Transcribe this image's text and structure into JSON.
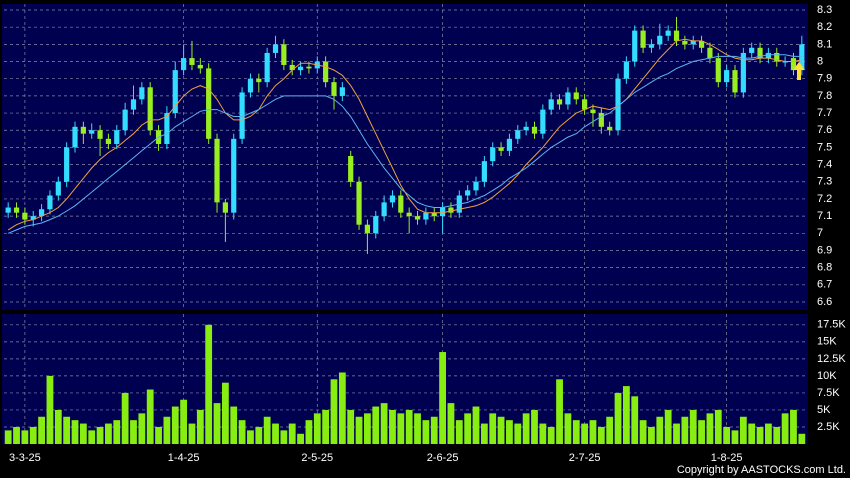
{
  "chart_data": [
    {
      "type": "candlestick",
      "up_color": "#33ddff",
      "down_color": "#99ee22",
      "background": "#000050",
      "ylim": [
        6.6,
        8.3
      ],
      "yticks": [
        6.6,
        6.7,
        6.8,
        6.9,
        7,
        7.1,
        7.2,
        7.3,
        7.4,
        7.5,
        7.6,
        7.7,
        7.8,
        7.9,
        8,
        8.1,
        8.2,
        8.3
      ],
      "grid": true,
      "open": [
        7.12,
        7.15,
        7.12,
        7.08,
        7.1,
        7.14,
        7.22,
        7.3,
        7.5,
        7.62,
        7.58,
        7.6,
        7.55,
        7.52,
        7.6,
        7.72,
        7.78,
        7.85,
        7.6,
        7.52,
        7.7,
        7.95,
        8.02,
        7.98,
        7.96,
        7.55,
        7.18,
        7.12,
        7.55,
        7.82,
        7.9,
        7.88,
        8.05,
        8.1,
        7.98,
        7.95,
        7.97,
        7.96,
        8.0,
        7.88,
        7.8,
        7.45,
        7.3,
        7.05,
        7.0,
        7.1,
        7.18,
        7.22,
        7.12,
        7.1,
        7.08,
        7.12,
        7.1,
        7.15,
        7.12,
        7.22,
        7.25,
        7.3,
        7.42,
        7.5,
        7.48,
        7.55,
        7.6,
        7.62,
        7.58,
        7.72,
        7.78,
        7.75,
        7.82,
        7.78,
        7.72,
        7.7,
        7.62,
        7.6,
        7.9,
        8.0,
        8.18,
        8.08,
        8.1,
        8.15,
        8.18,
        8.12,
        8.1,
        8.12,
        8.08,
        8.02,
        7.88,
        7.95,
        7.82,
        8.05,
        8.08,
        8.02,
        8.05,
        8.0,
        8.02,
        7.95
      ],
      "high": [
        7.18,
        7.18,
        7.15,
        7.13,
        7.17,
        7.25,
        7.33,
        7.53,
        7.65,
        7.65,
        7.64,
        7.63,
        7.58,
        7.63,
        7.76,
        7.86,
        7.88,
        7.88,
        7.63,
        7.74,
        8.0,
        8.1,
        8.12,
        8.02,
        7.99,
        7.58,
        7.2,
        7.58,
        7.85,
        7.93,
        7.93,
        8.08,
        8.15,
        8.13,
        8.01,
        8.0,
        8.0,
        8.03,
        8.03,
        7.91,
        7.88,
        7.48,
        7.33,
        7.08,
        7.13,
        7.22,
        7.25,
        7.25,
        7.15,
        7.13,
        7.15,
        7.15,
        7.18,
        7.18,
        7.25,
        7.28,
        7.33,
        7.45,
        7.53,
        7.53,
        7.58,
        7.63,
        7.65,
        7.65,
        7.75,
        7.82,
        7.81,
        7.85,
        7.85,
        7.81,
        7.75,
        7.73,
        7.65,
        7.93,
        8.03,
        8.21,
        8.21,
        8.13,
        8.22,
        8.21,
        8.26,
        8.15,
        8.15,
        8.15,
        8.11,
        8.05,
        7.98,
        7.98,
        8.08,
        8.11,
        8.11,
        8.08,
        8.08,
        8.03,
        8.05,
        8.15
      ],
      "low": [
        7.09,
        7.09,
        7.05,
        7.04,
        7.07,
        7.11,
        7.19,
        7.27,
        7.47,
        7.52,
        7.55,
        7.45,
        7.49,
        7.49,
        7.57,
        7.69,
        7.75,
        7.57,
        7.48,
        7.49,
        7.67,
        7.92,
        7.95,
        7.93,
        7.52,
        7.12,
        6.95,
        7.08,
        7.52,
        7.79,
        7.82,
        7.85,
        8.02,
        7.95,
        7.92,
        7.92,
        7.93,
        7.93,
        7.85,
        7.72,
        7.77,
        7.27,
        7.02,
        6.88,
        6.97,
        7.07,
        7.15,
        7.09,
        7.0,
        7.05,
        7.05,
        7.07,
        7.0,
        7.09,
        7.09,
        7.19,
        7.22,
        7.27,
        7.39,
        7.45,
        7.45,
        7.52,
        7.57,
        7.55,
        7.55,
        7.69,
        7.72,
        7.72,
        7.75,
        7.69,
        7.62,
        7.58,
        7.57,
        7.57,
        7.87,
        7.97,
        8.05,
        8.05,
        8.07,
        8.12,
        8.09,
        8.07,
        8.07,
        8.05,
        7.99,
        7.85,
        7.85,
        7.79,
        7.79,
        8.02,
        7.99,
        7.99,
        7.97,
        7.97,
        7.92,
        7.92
      ],
      "close": [
        7.15,
        7.12,
        7.08,
        7.1,
        7.14,
        7.22,
        7.3,
        7.5,
        7.62,
        7.58,
        7.6,
        7.55,
        7.52,
        7.6,
        7.72,
        7.78,
        7.85,
        7.6,
        7.52,
        7.7,
        7.95,
        8.02,
        7.98,
        7.96,
        7.55,
        7.18,
        7.12,
        7.55,
        7.82,
        7.9,
        7.88,
        8.05,
        8.1,
        7.98,
        7.95,
        7.97,
        7.96,
        8.0,
        7.88,
        7.8,
        7.85,
        7.3,
        7.05,
        7.0,
        7.1,
        7.18,
        7.22,
        7.12,
        7.1,
        7.08,
        7.12,
        7.1,
        7.15,
        7.12,
        7.22,
        7.25,
        7.3,
        7.42,
        7.5,
        7.48,
        7.55,
        7.6,
        7.62,
        7.58,
        7.72,
        7.78,
        7.75,
        7.82,
        7.78,
        7.72,
        7.7,
        7.62,
        7.6,
        7.9,
        8.0,
        8.18,
        8.08,
        8.1,
        8.15,
        8.18,
        8.12,
        8.1,
        8.12,
        8.08,
        8.02,
        7.88,
        7.95,
        7.82,
        8.05,
        8.08,
        8.02,
        8.05,
        8.0,
        8.0,
        7.95,
        8.1
      ],
      "series": [
        {
          "color": "#f0a040",
          "values": [
            7.02,
            7.05,
            7.07,
            7.08,
            7.1,
            7.12,
            7.15,
            7.2,
            7.26,
            7.32,
            7.38,
            7.43,
            7.47,
            7.5,
            7.54,
            7.58,
            7.63,
            7.66,
            7.66,
            7.68,
            7.74,
            7.8,
            7.84,
            7.86,
            7.84,
            7.78,
            7.7,
            7.66,
            7.66,
            7.68,
            7.72,
            7.8,
            7.86,
            7.9,
            7.95,
            7.99,
            7.99,
            7.98,
            7.97,
            7.95,
            7.92,
            7.86,
            7.78,
            7.68,
            7.58,
            7.48,
            7.38,
            7.28,
            7.2,
            7.14,
            7.12,
            7.12,
            7.12,
            7.13,
            7.14,
            7.15,
            7.16,
            7.18,
            7.21,
            7.25,
            7.29,
            7.34,
            7.4,
            7.45,
            7.5,
            7.56,
            7.62,
            7.66,
            7.7,
            7.72,
            7.74,
            7.73,
            7.72,
            7.74,
            7.78,
            7.84,
            7.9,
            7.96,
            8.02,
            8.07,
            8.12,
            8.13,
            8.12,
            8.12,
            8.1,
            8.07,
            8.04,
            8.02,
            8.01,
            8.01,
            8.02,
            8.02,
            8.01,
            8.0,
            8.0,
            8.01
          ]
        },
        {
          "color": "#5fb4f0",
          "values": [
            7.0,
            7.02,
            7.04,
            7.05,
            7.06,
            7.08,
            7.1,
            7.13,
            7.16,
            7.2,
            7.24,
            7.28,
            7.32,
            7.36,
            7.4,
            7.44,
            7.48,
            7.52,
            7.56,
            7.58,
            7.62,
            7.65,
            7.68,
            7.71,
            7.72,
            7.72,
            7.7,
            7.68,
            7.68,
            7.7,
            7.72,
            7.75,
            7.78,
            7.8,
            7.8,
            7.8,
            7.8,
            7.8,
            7.8,
            7.78,
            7.74,
            7.68,
            7.6,
            7.52,
            7.45,
            7.38,
            7.32,
            7.26,
            7.22,
            7.18,
            7.16,
            7.15,
            7.15,
            7.16,
            7.17,
            7.18,
            7.2,
            7.22,
            7.25,
            7.28,
            7.32,
            7.35,
            7.38,
            7.42,
            7.46,
            7.5,
            7.53,
            7.56,
            7.58,
            7.62,
            7.65,
            7.68,
            7.7,
            7.74,
            7.78,
            7.82,
            7.85,
            7.88,
            7.91,
            7.93,
            7.96,
            7.98,
            8.0,
            8.01,
            8.02,
            8.03,
            8.03,
            8.03,
            8.02,
            8.02,
            8.03,
            8.04,
            8.04,
            8.04,
            8.03,
            8.03
          ]
        }
      ]
    },
    {
      "type": "bar",
      "color": "#88ee11",
      "background": "#000050",
      "ylim": [
        0,
        18500
      ],
      "grid": true,
      "yticks": [
        {
          "value": 2500,
          "label": "2.5K"
        },
        {
          "value": 5000,
          "label": "5K"
        },
        {
          "value": 7500,
          "label": "7.5K"
        },
        {
          "value": 10000,
          "label": "10K"
        },
        {
          "value": 12500,
          "label": "12.5K"
        },
        {
          "value": 15000,
          "label": "15K"
        },
        {
          "value": 17500,
          "label": "17.5K"
        }
      ],
      "categories": [
        null,
        null,
        "3-3-25",
        null,
        null,
        null,
        null,
        null,
        null,
        null,
        null,
        null,
        null,
        null,
        null,
        null,
        null,
        null,
        null,
        null,
        null,
        "1-4-25",
        null,
        null,
        null,
        null,
        null,
        null,
        null,
        null,
        null,
        null,
        null,
        null,
        null,
        null,
        null,
        "2-5-25",
        null,
        null,
        null,
        null,
        null,
        null,
        null,
        null,
        null,
        null,
        null,
        null,
        null,
        null,
        "2-6-25",
        null,
        null,
        null,
        null,
        null,
        null,
        null,
        null,
        null,
        null,
        null,
        null,
        null,
        null,
        null,
        null,
        "2-7-25",
        null,
        null,
        null,
        null,
        null,
        null,
        null,
        null,
        null,
        null,
        null,
        null,
        null,
        null,
        null,
        null,
        "1-8-25",
        null,
        null,
        null,
        null,
        null,
        null,
        null,
        null,
        null
      ],
      "values": [
        2000,
        2500,
        2000,
        2500,
        4000,
        10000,
        5000,
        4000,
        3500,
        3000,
        2000,
        2500,
        3000,
        3500,
        7500,
        3500,
        4500,
        8000,
        2500,
        4000,
        5500,
        6500,
        3000,
        5000,
        17500,
        6000,
        9000,
        5500,
        3500,
        2000,
        2500,
        4000,
        3000,
        2000,
        3000,
        1500,
        3500,
        4500,
        5000,
        9500,
        10500,
        5000,
        4000,
        4500,
        5500,
        6000,
        5000,
        4500,
        5000,
        4500,
        3500,
        4000,
        13500,
        6000,
        3500,
        4500,
        5500,
        3000,
        4500,
        4000,
        3500,
        3000,
        4500,
        5000,
        3000,
        2500,
        9500,
        4500,
        3500,
        3000,
        3500,
        2500,
        4000,
        7500,
        8500,
        7000,
        3500,
        2500,
        4000,
        5000,
        3000,
        4000,
        5000,
        3500,
        4500,
        5000,
        2500,
        2000,
        4000,
        3000,
        2500,
        3000,
        2500,
        4500,
        5000,
        1500
      ],
      "footer": "Copyright by AASTOCKS.com Ltd."
    }
  ]
}
